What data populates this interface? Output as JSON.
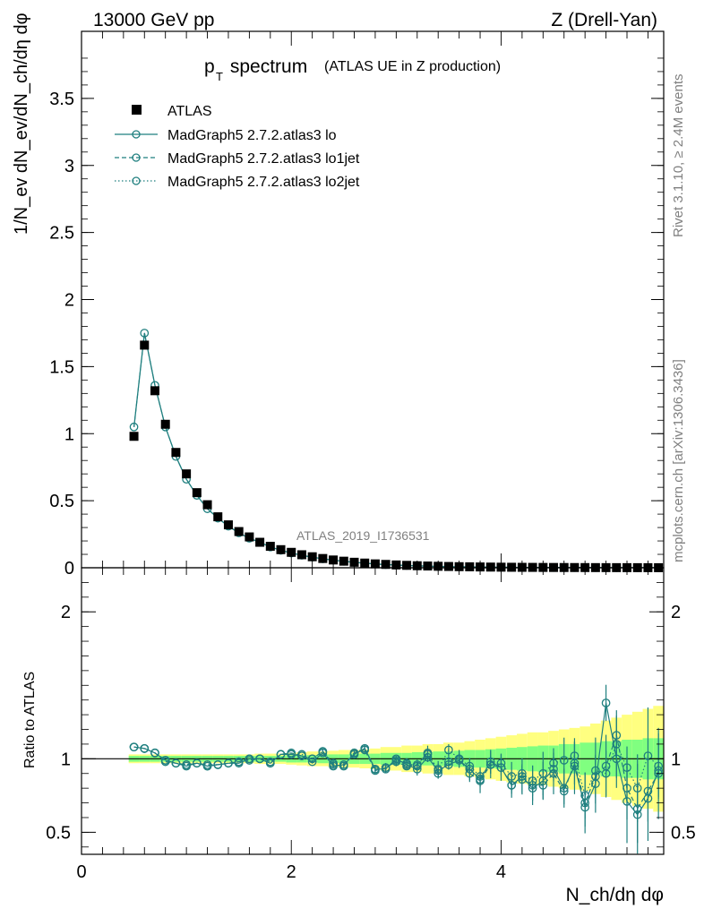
{
  "header": {
    "energy_label": "13000 GeV pp",
    "process_label": "Z (Drell-Yan)"
  },
  "side": {
    "rivet": "Rivet 3.1.10, ≥ 2.4M events",
    "source": "mcplots.cern.ch [arXiv:1306.3436]"
  },
  "watermark": "ATLAS_2019_I1736531",
  "colors": {
    "data": "#000000",
    "mc": "#1f7f7f",
    "band_outer": "#ffff80",
    "band_inner": "#80ff80"
  },
  "chart_data": [
    {
      "type": "line",
      "panel": "main",
      "title_main": "p",
      "title_sub": "T",
      "title_rest": " spectrum",
      "title_note": "(ATLAS UE in Z production)",
      "ylabel": "1/N_ev dN_ev/dN_ch/dη dφ",
      "xlim": [
        0,
        5.55
      ],
      "ylim": [
        0,
        4.0
      ],
      "yticks": [
        "0",
        "0.5",
        "1",
        "1.5",
        "2",
        "2.5",
        "3",
        "3.5"
      ],
      "x": [
        0.5,
        0.6,
        0.7,
        0.8,
        0.9,
        1.0,
        1.1,
        1.2,
        1.3,
        1.4,
        1.5,
        1.6,
        1.7,
        1.8,
        1.9,
        2.0,
        2.1,
        2.2,
        2.3,
        2.4,
        2.5,
        2.6,
        2.7,
        2.8,
        2.9,
        3.0,
        3.1,
        3.2,
        3.3,
        3.4,
        3.5,
        3.6,
        3.7,
        3.8,
        3.9,
        4.0,
        4.1,
        4.2,
        4.3,
        4.4,
        4.5,
        4.6,
        4.7,
        4.8,
        4.9,
        5.0,
        5.1,
        5.2,
        5.3,
        5.4,
        5.5
      ],
      "legend": [
        {
          "label": "ATLAS",
          "style": "marker"
        },
        {
          "label": "MadGraph5 2.7.2.atlas3 lo",
          "style": "solid"
        },
        {
          "label": "MadGraph5 2.7.2.atlas3 lo1jet",
          "style": "dashed"
        },
        {
          "label": "MadGraph5 2.7.2.atlas3 lo2jet",
          "style": "dotted"
        }
      ],
      "atlas": [
        0.98,
        1.66,
        1.32,
        1.07,
        0.86,
        0.7,
        0.56,
        0.47,
        0.38,
        0.32,
        0.27,
        0.23,
        0.19,
        0.16,
        0.135,
        0.115,
        0.097,
        0.082,
        0.069,
        0.058,
        0.049,
        0.041,
        0.035,
        0.029,
        0.025,
        0.021,
        0.018,
        0.015,
        0.013,
        0.011,
        0.0095,
        0.008,
        0.007,
        0.006,
        0.005,
        0.0043,
        0.0037,
        0.0032,
        0.0028,
        0.0024,
        0.0021,
        0.0018,
        0.0016,
        0.0014,
        0.0012,
        0.001,
        0.0009,
        0.0008,
        0.0007,
        0.0006,
        0.0005
      ],
      "mc": [
        1.05,
        1.75,
        1.36,
        1.05,
        0.83,
        0.66,
        0.54,
        0.44,
        0.37,
        0.31,
        0.26,
        0.22,
        0.19,
        0.155,
        0.13,
        0.11,
        0.093,
        0.079,
        0.067,
        0.057,
        0.048,
        0.04,
        0.034,
        0.028,
        0.024,
        0.02,
        0.017,
        0.0145,
        0.012,
        0.01,
        0.0088,
        0.0076,
        0.0066,
        0.0056,
        0.0048,
        0.0041,
        0.0035,
        0.003,
        0.0026,
        0.0022,
        0.0019,
        0.0016,
        0.0014,
        0.0012,
        0.0011,
        0.0009,
        0.0008,
        0.0007,
        0.0006,
        0.0005,
        0.0004
      ]
    },
    {
      "type": "line",
      "panel": "ratio",
      "ylabel": "Ratio to ATLAS",
      "xlabel": "N_ch/dη dφ",
      "xlim": [
        0,
        5.55
      ],
      "ylim": [
        0.35,
        2.3
      ],
      "yticks": [
        "0.5",
        "1",
        "2"
      ],
      "xticks": [
        "0",
        "2",
        "4"
      ],
      "x": [
        0.5,
        0.6,
        0.7,
        0.8,
        0.9,
        1.0,
        1.1,
        1.2,
        1.3,
        1.4,
        1.5,
        1.6,
        1.7,
        1.8,
        1.9,
        2.0,
        2.1,
        2.2,
        2.3,
        2.4,
        2.5,
        2.6,
        2.7,
        2.8,
        2.9,
        3.0,
        3.1,
        3.2,
        3.3,
        3.4,
        3.5,
        3.6,
        3.7,
        3.8,
        3.9,
        4.0,
        4.1,
        4.2,
        4.3,
        4.4,
        4.5,
        4.6,
        4.7,
        4.8,
        4.9,
        5.0,
        5.1,
        5.2,
        5.3,
        5.4,
        5.5
      ],
      "band_inner_halfwidth": [
        0.02,
        0.02,
        0.02,
        0.02,
        0.02,
        0.02,
        0.02,
        0.02,
        0.02,
        0.02,
        0.02,
        0.02,
        0.02,
        0.02,
        0.02,
        0.025,
        0.025,
        0.025,
        0.03,
        0.03,
        0.03,
        0.035,
        0.035,
        0.035,
        0.04,
        0.04,
        0.04,
        0.045,
        0.045,
        0.05,
        0.05,
        0.055,
        0.06,
        0.06,
        0.065,
        0.07,
        0.075,
        0.08,
        0.085,
        0.09,
        0.09,
        0.1,
        0.1,
        0.11,
        0.11,
        0.12,
        0.12,
        0.13,
        0.13,
        0.14,
        0.14
      ],
      "band_outer_halfwidth": [
        0.03,
        0.03,
        0.03,
        0.03,
        0.03,
        0.03,
        0.03,
        0.03,
        0.03,
        0.03,
        0.03,
        0.03,
        0.035,
        0.035,
        0.035,
        0.04,
        0.045,
        0.05,
        0.05,
        0.055,
        0.06,
        0.06,
        0.065,
        0.07,
        0.08,
        0.08,
        0.09,
        0.09,
        0.1,
        0.1,
        0.11,
        0.11,
        0.12,
        0.13,
        0.14,
        0.15,
        0.16,
        0.17,
        0.18,
        0.18,
        0.19,
        0.2,
        0.21,
        0.22,
        0.24,
        0.26,
        0.28,
        0.3,
        0.32,
        0.34,
        0.36
      ],
      "series": [
        {
          "name": "MadGraph5 2.7.2.atlas3 lo",
          "style": "solid",
          "values": [
            1.08,
            1.07,
            1.04,
            0.99,
            0.97,
            0.95,
            0.97,
            0.95,
            0.96,
            0.97,
            0.97,
            1.0,
            1.0,
            0.97,
            1.03,
            1.03,
            1.02,
            0.98,
            1.04,
            0.95,
            0.96,
            1.03,
            1.07,
            0.93,
            0.93,
            1.0,
            0.96,
            0.93,
            1.01,
            0.92,
            0.96,
            0.99,
            0.93,
            0.86,
            0.98,
            0.94,
            0.82,
            0.88,
            0.8,
            0.85,
            0.93,
            0.8,
            0.95,
            0.67,
            0.83,
            1.38,
            1.0,
            0.71,
            0.62,
            0.73,
            0.92
          ]
        },
        {
          "name": "MadGraph5 2.7.2.atlas3 lo1jet",
          "style": "dashed",
          "values": [
            1.08,
            1.07,
            1.04,
            0.98,
            0.97,
            0.96,
            0.97,
            0.96,
            0.96,
            0.97,
            0.98,
            0.99,
            1.0,
            0.97,
            1.03,
            1.04,
            1.02,
            1.0,
            1.05,
            0.96,
            0.95,
            1.04,
            1.06,
            0.92,
            0.94,
            0.98,
            0.95,
            0.96,
            1.04,
            0.9,
            0.98,
            1.0,
            0.9,
            0.85,
            0.96,
            0.94,
            0.82,
            0.86,
            0.82,
            0.82,
            0.9,
            0.78,
            0.97,
            0.7,
            0.88,
            0.95,
            1.16,
            0.8,
            0.66,
            0.78,
            0.9
          ]
        },
        {
          "name": "MadGraph5 2.7.2.atlas3 lo2jet",
          "style": "dotted",
          "values": [
            1.08,
            1.07,
            1.04,
            0.99,
            0.97,
            0.96,
            0.97,
            0.95,
            0.96,
            0.97,
            0.98,
            1.0,
            1.0,
            0.98,
            1.03,
            1.03,
            1.03,
            1.0,
            1.05,
            0.97,
            0.96,
            1.04,
            1.07,
            0.93,
            0.94,
            0.99,
            0.97,
            0.95,
            1.03,
            0.93,
            1.06,
            1.0,
            0.95,
            0.88,
            0.96,
            0.97,
            0.88,
            0.9,
            0.85,
            0.9,
            0.97,
            0.99,
            1.02,
            0.75,
            0.92,
            0.9,
            1.1,
            0.94,
            0.8,
            1.02,
            0.95
          ]
        }
      ]
    }
  ]
}
